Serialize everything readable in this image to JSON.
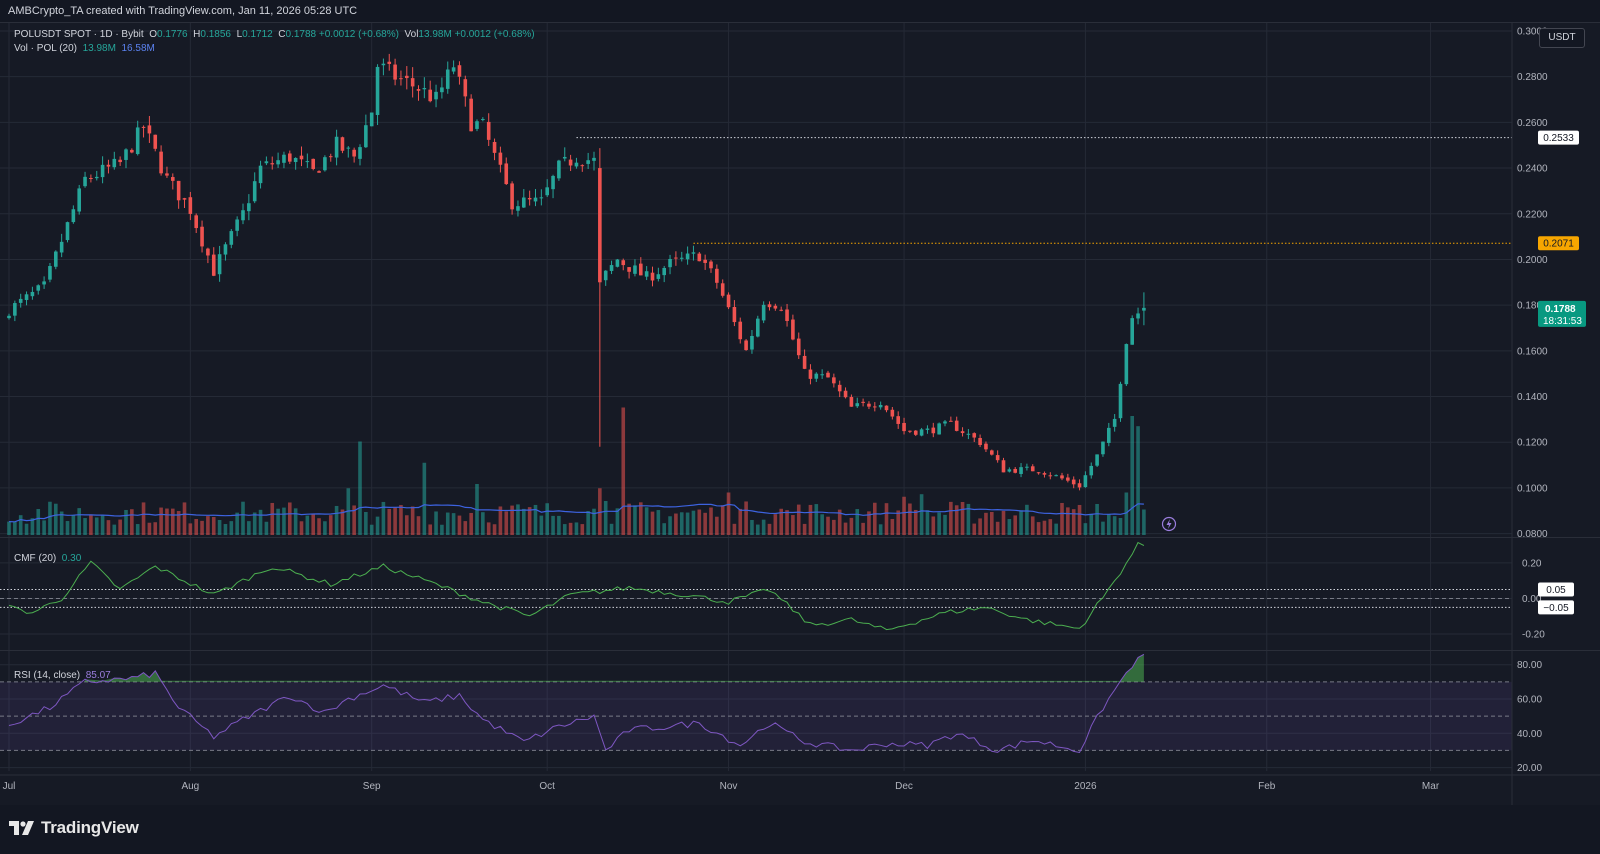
{
  "header": {
    "text": "AMBCrypto_TA created with TradingView.com, Jan 11, 2026 05:28 UTC"
  },
  "legend": {
    "symbol": "POLUSDT SPOT · 1D · Bybit",
    "o_label": "O",
    "o": "0.1776",
    "h_label": "H",
    "h": "0.1856",
    "l_label": "L",
    "l": "0.1712",
    "c_label": "C",
    "c": "0.1788",
    "change": "+0.0012 (+0.68%)",
    "vol_label": "Vol",
    "vol": "13.98M",
    "vol_change": "+0.0012 (+0.68%)",
    "vol_ma_label": "Vol · POL (20)",
    "vol_ma_1": "13.98M",
    "vol_ma_2": "16.58M",
    "cmf_label": "CMF (20)",
    "cmf_value": "0.30",
    "rsi_label": "RSI (14, close)",
    "rsi_value": "85.07"
  },
  "currency": "USDT",
  "colors": {
    "up": "#26a69a",
    "down": "#ef5350",
    "background": "#161a25",
    "grid": "#252a36",
    "vol_ma": "#3d63e0",
    "cmf": "#4caf50",
    "rsi": "#7e57c2",
    "level_orange": "#f7a600"
  },
  "footer": {
    "brand": "TradingView"
  },
  "chart_data": [
    {
      "type": "candlestick",
      "title": "POLUSDT SPOT · 1D · Bybit",
      "x_ticks": [
        "Jul",
        "Aug",
        "Sep",
        "Oct",
        "Nov",
        "Dec",
        "2026",
        "Feb",
        "Mar"
      ],
      "y_ticks": [
        "0.3000",
        "0.2800",
        "0.2600",
        "0.2400",
        "0.2200",
        "0.2000",
        "0.1800",
        "0.1600",
        "0.1400",
        "0.1200",
        "0.1000",
        "0.0800"
      ],
      "ylim": [
        0.0785,
        0.3035
      ],
      "levels": [
        {
          "value": 0.2533,
          "label": "0.2533",
          "style": "white-dotted"
        },
        {
          "value": 0.2071,
          "label": "0.2071",
          "style": "orange-dotted"
        }
      ],
      "last_price": {
        "value": 0.1788,
        "label": "0.1788",
        "countdown": "18:31:53"
      },
      "anchors": [
        [
          "2025-07-01",
          0.178
        ],
        [
          "2025-07-07",
          0.188
        ],
        [
          "2025-07-14",
          0.235
        ],
        [
          "2025-07-20",
          0.242
        ],
        [
          "2025-07-24",
          0.258
        ],
        [
          "2025-07-28",
          0.235
        ],
        [
          "2025-08-01",
          0.222
        ],
        [
          "2025-08-05",
          0.195
        ],
        [
          "2025-08-10",
          0.22
        ],
        [
          "2025-08-13",
          0.24
        ],
        [
          "2025-08-18",
          0.245
        ],
        [
          "2025-08-22",
          0.238
        ],
        [
          "2025-08-26",
          0.25
        ],
        [
          "2025-08-29",
          0.245
        ],
        [
          "2025-09-01",
          0.265
        ],
        [
          "2025-09-02",
          0.285
        ],
        [
          "2025-09-05",
          0.28
        ],
        [
          "2025-09-09",
          0.275
        ],
        [
          "2025-09-12",
          0.27
        ],
        [
          "2025-09-15",
          0.285
        ],
        [
          "2025-09-18",
          0.26
        ],
        [
          "2025-09-20",
          0.258
        ],
        [
          "2025-09-25",
          0.225
        ],
        [
          "2025-09-30",
          0.225
        ],
        [
          "2025-10-03",
          0.24
        ],
        [
          "2025-10-06",
          0.245
        ],
        [
          "2025-10-09",
          0.243
        ],
        [
          "2025-10-10",
          0.19
        ],
        [
          "2025-10-13",
          0.2
        ],
        [
          "2025-10-18",
          0.192
        ],
        [
          "2025-10-22",
          0.198
        ],
        [
          "2025-10-27",
          0.202
        ],
        [
          "2025-10-30",
          0.19
        ],
        [
          "2025-11-04",
          0.16
        ],
        [
          "2025-11-07",
          0.182
        ],
        [
          "2025-11-10",
          0.18
        ],
        [
          "2025-11-14",
          0.15
        ],
        [
          "2025-11-18",
          0.148
        ],
        [
          "2025-11-22",
          0.135
        ],
        [
          "2025-11-27",
          0.138
        ],
        [
          "2025-12-01",
          0.125
        ],
        [
          "2025-12-05",
          0.125
        ],
        [
          "2025-12-09",
          0.128
        ],
        [
          "2025-12-14",
          0.12
        ],
        [
          "2025-12-18",
          0.108
        ],
        [
          "2025-12-24",
          0.108
        ],
        [
          "2025-12-28",
          0.104
        ],
        [
          "2025-12-31",
          0.101
        ],
        [
          "2026-01-03",
          0.114
        ],
        [
          "2026-01-06",
          0.13
        ],
        [
          "2026-01-08",
          0.165
        ],
        [
          "2026-01-09",
          0.175
        ],
        [
          "2026-01-11",
          0.1788
        ]
      ]
    },
    {
      "type": "bar",
      "title": "Vol · POL (20)",
      "values_label": "volume",
      "ma_values_label": "volume MA (20)"
    },
    {
      "type": "line",
      "title": "CMF (20)",
      "y_ticks": [
        "0.20",
        "0.00",
        "-0.20"
      ],
      "ylim": [
        -0.29,
        0.34
      ],
      "levels": [
        {
          "value": 0.05,
          "label": "0.05"
        },
        {
          "value": -0.05,
          "label": "−0.05"
        }
      ],
      "last_value": 0.3,
      "anchors": [
        [
          "2025-07-01",
          -0.05
        ],
        [
          "2025-07-05",
          -0.08
        ],
        [
          "2025-07-10",
          0.0
        ],
        [
          "2025-07-15",
          0.2
        ],
        [
          "2025-07-20",
          0.05
        ],
        [
          "2025-07-26",
          0.18
        ],
        [
          "2025-08-05",
          0.02
        ],
        [
          "2025-08-15",
          0.18
        ],
        [
          "2025-08-25",
          0.08
        ],
        [
          "2025-09-03",
          0.18
        ],
        [
          "2025-09-12",
          0.08
        ],
        [
          "2025-09-20",
          -0.02
        ],
        [
          "2025-09-28",
          -0.1
        ],
        [
          "2025-10-05",
          0.02
        ],
        [
          "2025-10-15",
          0.06
        ],
        [
          "2025-10-25",
          0.02
        ],
        [
          "2025-11-01",
          -0.02
        ],
        [
          "2025-11-08",
          0.05
        ],
        [
          "2025-11-15",
          -0.15
        ],
        [
          "2025-11-22",
          -0.12
        ],
        [
          "2025-11-28",
          -0.18
        ],
        [
          "2025-12-08",
          -0.08
        ],
        [
          "2025-12-15",
          -0.05
        ],
        [
          "2025-12-22",
          -0.12
        ],
        [
          "2025-12-31",
          -0.17
        ],
        [
          "2026-01-05",
          0.05
        ],
        [
          "2026-01-08",
          0.2
        ],
        [
          "2026-01-10",
          0.3
        ],
        [
          "2026-01-11",
          0.3
        ]
      ]
    },
    {
      "type": "line",
      "title": "RSI (14, close)",
      "y_ticks": [
        "80.00",
        "60.00",
        "40.00",
        "20.00"
      ],
      "ylim": [
        18,
        88
      ],
      "bands": [
        70,
        50,
        30
      ],
      "last_value": 85.07,
      "anchors": [
        [
          "2025-07-01",
          45
        ],
        [
          "2025-07-08",
          55
        ],
        [
          "2025-07-14",
          70
        ],
        [
          "2025-07-22",
          72
        ],
        [
          "2025-07-26",
          75
        ],
        [
          "2025-07-30",
          55
        ],
        [
          "2025-08-05",
          38
        ],
        [
          "2025-08-10",
          48
        ],
        [
          "2025-08-18",
          62
        ],
        [
          "2025-08-24",
          52
        ],
        [
          "2025-08-28",
          60
        ],
        [
          "2025-09-03",
          68
        ],
        [
          "2025-09-10",
          58
        ],
        [
          "2025-09-16",
          62
        ],
        [
          "2025-09-20",
          48
        ],
        [
          "2025-09-27",
          35
        ],
        [
          "2025-10-03",
          44
        ],
        [
          "2025-10-09",
          50
        ],
        [
          "2025-10-11",
          30
        ],
        [
          "2025-10-15",
          42
        ],
        [
          "2025-10-22",
          44
        ],
        [
          "2025-10-27",
          46
        ],
        [
          "2025-11-03",
          33
        ],
        [
          "2025-11-08",
          46
        ],
        [
          "2025-11-14",
          35
        ],
        [
          "2025-11-22",
          30
        ],
        [
          "2025-11-28",
          34
        ],
        [
          "2025-12-05",
          33
        ],
        [
          "2025-12-10",
          40
        ],
        [
          "2025-12-17",
          30
        ],
        [
          "2025-12-23",
          36
        ],
        [
          "2025-12-31",
          30
        ],
        [
          "2026-01-04",
          55
        ],
        [
          "2026-01-07",
          70
        ],
        [
          "2026-01-09",
          80
        ],
        [
          "2026-01-11",
          85
        ]
      ]
    }
  ]
}
